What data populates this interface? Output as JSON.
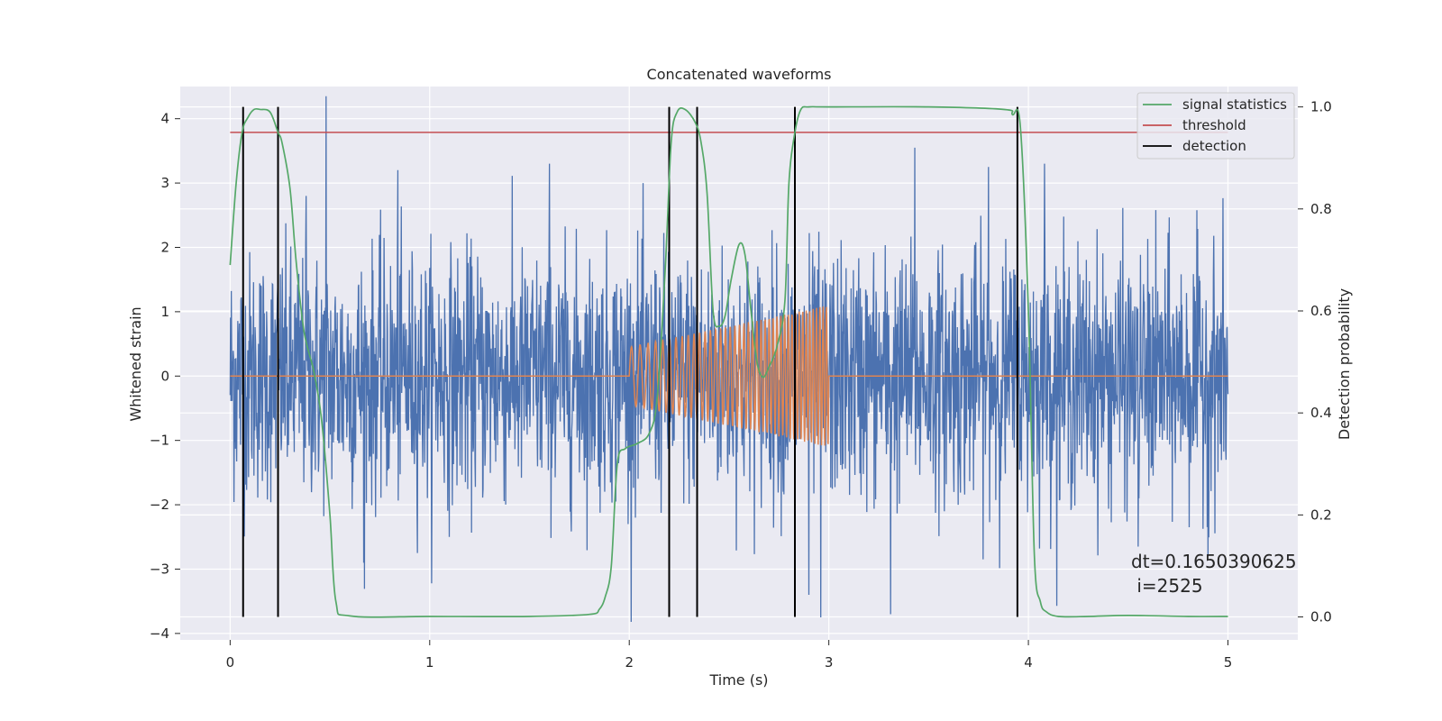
{
  "chart_data": {
    "type": "line",
    "title": "Concatenated waveforms",
    "xlabel": "Time (s)",
    "ylabel": "Whitened strain",
    "ylabel_right": "Detection probability",
    "xlim": [
      -0.25,
      5.35
    ],
    "ylim": [
      -4.1,
      4.5
    ],
    "ylim_right": [
      -0.045,
      1.04
    ],
    "x_ticks": [
      0,
      1,
      2,
      3,
      4,
      5
    ],
    "x_tick_labels": [
      "0",
      "1",
      "2",
      "3",
      "4",
      "5"
    ],
    "y_ticks": [
      -4,
      -3,
      -2,
      -1,
      0,
      1,
      2,
      3,
      4
    ],
    "y_tick_labels": [
      "−4",
      "−3",
      "−2",
      "−1",
      "0",
      "1",
      "2",
      "3",
      "4"
    ],
    "y_right_ticks": [
      0.0,
      0.2,
      0.4,
      0.6,
      0.8,
      1.0
    ],
    "y_right_tick_labels": [
      "0.0",
      "0.2",
      "0.4",
      "0.6",
      "0.8",
      "1.0"
    ],
    "grid": true,
    "legend_position": "top-right",
    "colors": {
      "noise": "#4c72b0",
      "injection": "#dd8452",
      "signal_statistics": "#55a868",
      "threshold": "#c44e52",
      "detection": "#000000",
      "background": "#eaeaf2"
    },
    "series": [
      {
        "name": "",
        "role": "whitened noise strain",
        "x_range": [
          0,
          5
        ],
        "amplitude_std": 1.0,
        "notable_peaks": [
          {
            "x": 0.48,
            "y": 4.35
          },
          {
            "x": 0.38,
            "y": 2.8
          },
          {
            "x": 0.84,
            "y": 3.2
          },
          {
            "x": 1.6,
            "y": 3.3
          },
          {
            "x": 3.43,
            "y": 3.55
          },
          {
            "x": 3.8,
            "y": 3.25
          },
          {
            "x": 4.08,
            "y": 3.3
          },
          {
            "x": 0.67,
            "y": -2.9
          },
          {
            "x": 2.9,
            "y": -3.4
          },
          {
            "x": 2.96,
            "y": -3.75
          },
          {
            "x": 3.31,
            "y": -3.7
          },
          {
            "x": 4.9,
            "y": -2.8
          },
          {
            "x": 4.55,
            "y": -2.65
          }
        ]
      },
      {
        "name": "",
        "role": "injected chirp waveform",
        "x_range": [
          0,
          5
        ],
        "chirp_start": 2.0,
        "chirp_end": 3.0,
        "amplitude_start": 0.45,
        "amplitude_end": 1.1,
        "frequency_start_hz": 22,
        "frequency_end_hz": 62
      },
      {
        "name": "signal statistics",
        "axis": "right",
        "x": [
          0,
          0.03,
          0.06,
          0.09,
          0.12,
          0.15,
          0.2,
          0.24,
          0.26,
          0.3,
          0.33,
          0.37,
          0.42,
          0.46,
          0.5,
          0.53,
          0.6,
          1.0,
          1.5,
          1.8,
          1.85,
          1.88,
          1.91,
          1.94,
          1.98,
          2.04,
          2.1,
          2.14,
          2.18,
          2.21,
          2.24,
          2.28,
          2.33,
          2.36,
          2.39,
          2.42,
          2.45,
          2.48,
          2.51,
          2.55,
          2.58,
          2.61,
          2.64,
          2.67,
          2.7,
          2.74,
          2.78,
          2.8,
          2.83,
          2.86,
          2.9,
          3.0,
          3.5,
          3.88,
          3.92,
          3.96,
          4.0,
          4.03,
          4.06,
          4.09,
          4.15,
          4.3,
          4.5,
          4.8,
          5.0
        ],
        "y": [
          0.69,
          0.85,
          0.95,
          0.98,
          0.995,
          0.995,
          0.99,
          0.95,
          0.93,
          0.84,
          0.7,
          0.56,
          0.48,
          0.38,
          0.2,
          0.03,
          0.002,
          0.001,
          0.001,
          0.005,
          0.015,
          0.04,
          0.1,
          0.3,
          0.33,
          0.34,
          0.36,
          0.43,
          0.68,
          0.93,
          0.99,
          0.995,
          0.97,
          0.93,
          0.83,
          0.6,
          0.57,
          0.59,
          0.66,
          0.73,
          0.71,
          0.6,
          0.5,
          0.47,
          0.49,
          0.53,
          0.62,
          0.85,
          0.95,
          0.995,
          1.0,
          1.0,
          1.0,
          0.995,
          0.985,
          0.96,
          0.6,
          0.12,
          0.03,
          0.01,
          0.001,
          0.001,
          0.003,
          0.001,
          0.001
        ]
      },
      {
        "name": "threshold",
        "axis": "right",
        "x": [
          0,
          5
        ],
        "y": [
          0.95,
          0.95
        ]
      }
    ],
    "detections": {
      "name": "detection",
      "x": [
        0.065,
        0.24,
        2.2,
        2.34,
        2.83,
        3.945
      ]
    },
    "annotations": [
      {
        "line1": "dt=0.1650390625",
        "line2": " i=2525",
        "x": 4.5,
        "y": -3.0
      }
    ]
  }
}
